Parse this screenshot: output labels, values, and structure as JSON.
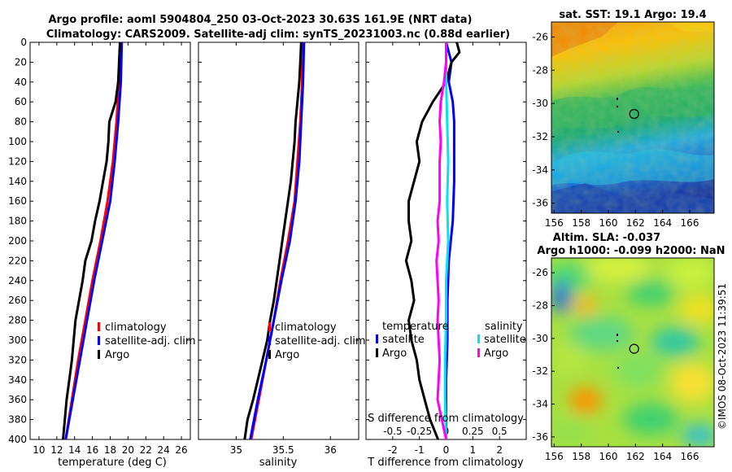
{
  "header": {
    "title_line1": "Argo profile: aoml 5904804_250 03-Oct-2023 30.63S 161.9E (NRT data)",
    "title_line2": "Climatology: CARS2009. Satellite-adj clim: synTS_20231003.nc (0.88d earlier)"
  },
  "credit": "©IMOS 08-Oct-2023 11:39:51",
  "colors": {
    "climatology": "#ff0000",
    "satellite": "#0000ff",
    "argo": "#000000",
    "sal_satellite": "#00e5ee",
    "sal_argo": "#ff00ff"
  },
  "chart_data": [
    {
      "id": "temperature",
      "type": "line",
      "xlabel": "temperature (deg C)",
      "ylabel": "",
      "xlim": [
        9,
        27
      ],
      "ylim": [
        400,
        0
      ],
      "xticks": [
        10,
        12,
        14,
        16,
        18,
        20,
        22,
        24,
        26
      ],
      "yticks": [
        0,
        20,
        40,
        60,
        80,
        100,
        120,
        140,
        160,
        180,
        200,
        220,
        240,
        260,
        280,
        300,
        320,
        340,
        360,
        380,
        400
      ],
      "legend": [
        "climatology",
        "satellite-adj. clim",
        "Argo"
      ],
      "series": [
        {
          "name": "climatology",
          "color": "#ff0000",
          "depth": [
            0,
            40,
            80,
            120,
            160,
            200,
            240,
            280,
            320,
            360,
            400
          ],
          "values": [
            19.2,
            19.0,
            18.7,
            18.3,
            17.7,
            16.9,
            16.0,
            15.2,
            14.4,
            13.7,
            13.0
          ]
        },
        {
          "name": "satellite-adj. clim",
          "color": "#0000ff",
          "depth": [
            0,
            40,
            80,
            120,
            160,
            200,
            240,
            280,
            320,
            360,
            400
          ],
          "values": [
            19.3,
            19.2,
            18.9,
            18.5,
            18.0,
            17.1,
            16.2,
            15.4,
            14.6,
            13.8,
            13.0
          ]
        },
        {
          "name": "Argo",
          "color": "#000000",
          "depth": [
            0,
            20,
            40,
            60,
            80,
            100,
            120,
            140,
            160,
            180,
            200,
            220,
            240,
            260,
            280,
            300,
            320,
            340,
            360,
            380,
            400
          ],
          "values": [
            19.1,
            19.0,
            18.9,
            18.6,
            17.9,
            17.8,
            17.6,
            17.2,
            16.8,
            16.3,
            15.9,
            15.2,
            14.9,
            14.5,
            14.1,
            13.9,
            13.7,
            13.4,
            13.1,
            12.9,
            12.7
          ]
        }
      ]
    },
    {
      "id": "salinity",
      "type": "line",
      "xlabel": "salinity",
      "ylabel": "",
      "xlim": [
        34.6,
        36.3
      ],
      "ylim": [
        400,
        0
      ],
      "xticks": [
        35,
        35.5,
        36
      ],
      "xticklabels": [
        "35",
        "35.5",
        "36"
      ],
      "legend": [
        "climatology",
        "satellite-adj. clim",
        "Argo"
      ],
      "series": [
        {
          "name": "climatology",
          "color": "#ff0000",
          "depth": [
            0,
            40,
            80,
            120,
            160,
            200,
            240,
            280,
            320,
            360,
            400
          ],
          "values": [
            35.7,
            35.7,
            35.68,
            35.65,
            35.62,
            35.55,
            35.47,
            35.4,
            35.32,
            35.24,
            35.16
          ]
        },
        {
          "name": "satellite-adj. clim",
          "color": "#0000ff",
          "depth": [
            0,
            40,
            80,
            120,
            160,
            200,
            240,
            280,
            320,
            360,
            400
          ],
          "values": [
            35.72,
            35.71,
            35.69,
            35.67,
            35.63,
            35.57,
            35.48,
            35.4,
            35.32,
            35.23,
            35.15
          ]
        },
        {
          "name": "Argo",
          "color": "#000000",
          "depth": [
            0,
            20,
            40,
            60,
            80,
            100,
            120,
            140,
            160,
            180,
            200,
            220,
            240,
            260,
            280,
            300,
            320,
            340,
            360,
            380,
            400
          ],
          "values": [
            35.69,
            35.68,
            35.67,
            35.65,
            35.63,
            35.62,
            35.6,
            35.58,
            35.55,
            35.52,
            35.49,
            35.46,
            35.43,
            35.4,
            35.36,
            35.33,
            35.28,
            35.23,
            35.18,
            35.12,
            35.09
          ]
        }
      ]
    },
    {
      "id": "difference",
      "type": "line",
      "xlabel": "T difference from climatology",
      "top_xlabel": "S difference from climatology",
      "xlim": [
        -3,
        3
      ],
      "ylim": [
        400,
        0
      ],
      "xticks": [
        -2,
        -1,
        0,
        1,
        2
      ],
      "top_xlim": [
        -0.75,
        0.75
      ],
      "top_xticks": [
        -0.5,
        -0.25,
        0,
        0.25,
        0.5
      ],
      "top_xticklabels": [
        "-0.5",
        "-0.25",
        "0",
        "0.25",
        "0.5"
      ],
      "legend_temperature_title": "temperature",
      "legend_salinity_title": "salinity",
      "legend": [
        "satellite",
        "Argo"
      ],
      "series": [
        {
          "name": "temperature satellite",
          "color": "#0000ff",
          "depth": [
            0,
            20,
            40,
            60,
            80,
            100,
            140,
            180,
            220,
            260,
            300,
            340,
            380,
            400
          ],
          "values": [
            0.0,
            0.2,
            0.1,
            0.25,
            0.3,
            0.3,
            0.3,
            0.25,
            0.1,
            0.05,
            0.05,
            0.0,
            0.0,
            0.0
          ]
        },
        {
          "name": "temperature Argo",
          "color": "#000000",
          "depth": [
            0,
            10,
            20,
            40,
            60,
            80,
            100,
            120,
            140,
            160,
            180,
            200,
            220,
            240,
            260,
            280,
            300,
            320,
            340,
            360,
            380,
            400
          ],
          "values": [
            0.4,
            0.5,
            0.2,
            0.0,
            -0.5,
            -0.9,
            -1.1,
            -1.0,
            -1.2,
            -1.4,
            -1.4,
            -1.3,
            -1.5,
            -1.3,
            -1.2,
            -1.4,
            -1.3,
            -1.1,
            -1.0,
            -0.8,
            -0.6,
            -0.3
          ]
        },
        {
          "name": "salinity satellite",
          "color": "#00e5ee",
          "depth": [
            0,
            40,
            80,
            120,
            160,
            200,
            240,
            280,
            320,
            360,
            400
          ],
          "values": [
            0.0,
            0.0,
            0.01,
            0.02,
            0.01,
            0.02,
            0.0,
            0.0,
            -0.01,
            -0.01,
            0.0
          ]
        },
        {
          "name": "salinity Argo",
          "color": "#ff00ff",
          "depth": [
            0,
            20,
            40,
            60,
            80,
            100,
            120,
            140,
            160,
            180,
            200,
            220,
            240,
            260,
            280,
            300,
            320,
            340,
            360,
            380,
            400
          ],
          "values": [
            0.0,
            0.0,
            -0.02,
            -0.05,
            -0.06,
            -0.05,
            -0.06,
            -0.06,
            -0.06,
            -0.08,
            -0.07,
            -0.09,
            -0.08,
            -0.07,
            -0.08,
            -0.07,
            -0.06,
            -0.07,
            -0.08,
            -0.04,
            0.0
          ]
        }
      ]
    },
    {
      "id": "sst_map",
      "type": "heatmap",
      "title": "sat. SST: 19.1 Argo: 19.4",
      "xlim": [
        155.8,
        167.8
      ],
      "ylim": [
        -36.6,
        -25.1
      ],
      "xticks": [
        156,
        158,
        160,
        162,
        164,
        166
      ],
      "yticks": [
        -26,
        -28,
        -30,
        -32,
        -34,
        -36
      ],
      "profile_location": {
        "lon": 161.9,
        "lat": -30.63
      }
    },
    {
      "id": "sla_map",
      "type": "heatmap",
      "title_line1": "Altim. SLA: -0.037",
      "title_line2": "Argo h1000: -0.099 h2000: NaN",
      "xlim": [
        155.8,
        167.8
      ],
      "ylim": [
        -36.6,
        -25.1
      ],
      "xticks": [
        156,
        158,
        160,
        162,
        164,
        166
      ],
      "yticks": [
        -26,
        -28,
        -30,
        -32,
        -34,
        -36
      ],
      "profile_location": {
        "lon": 161.9,
        "lat": -30.63
      }
    }
  ]
}
